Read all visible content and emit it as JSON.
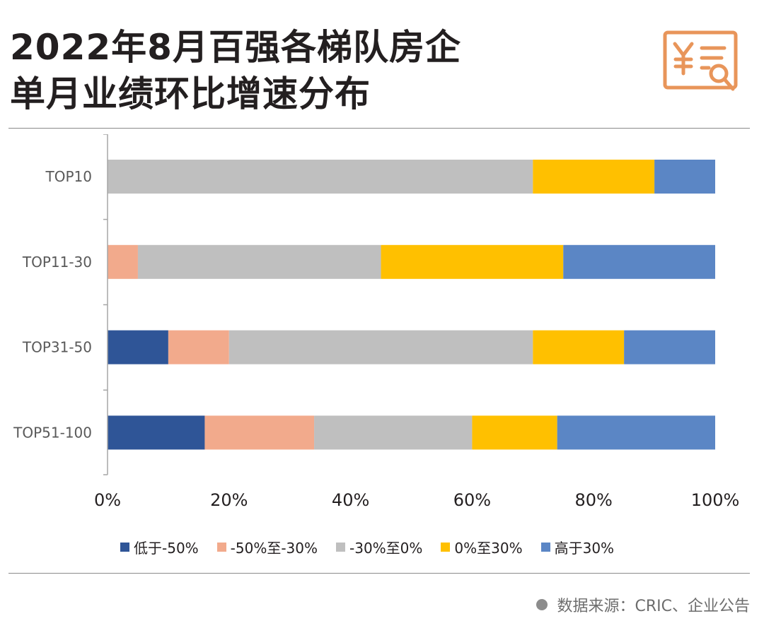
{
  "header": {
    "title_line1": "2022年8月百强各梯队房企",
    "title_line2": "单月业绩环比增速分布",
    "icon": "yuan-receipt-search-icon",
    "icon_color": "#e8955a"
  },
  "chart_data": {
    "type": "bar",
    "orientation": "horizontal",
    "stacked": true,
    "categories": [
      "TOP10",
      "TOP11-30",
      "TOP31-50",
      "TOP51-100"
    ],
    "series": [
      {
        "name": "低于-50%",
        "color": "#2f5597",
        "values": [
          0,
          0,
          10,
          16
        ]
      },
      {
        "name": "-50%至-30%",
        "color": "#f2aa8c",
        "values": [
          0,
          5,
          10,
          18
        ]
      },
      {
        "name": "-30%至0%",
        "color": "#bfbfbf",
        "values": [
          70,
          40,
          50,
          26
        ]
      },
      {
        "name": "0%至30%",
        "color": "#ffc000",
        "values": [
          20,
          30,
          15,
          14
        ]
      },
      {
        "name": "高于30%",
        "color": "#5b86c5",
        "values": [
          10,
          25,
          15,
          26
        ]
      }
    ],
    "xlim": [
      0,
      100
    ],
    "xticks": [
      "0%",
      "20%",
      "40%",
      "60%",
      "80%",
      "100%"
    ],
    "xlabel": "",
    "ylabel": "",
    "grid": false,
    "legend_position": "bottom"
  },
  "footer": {
    "source": "数据来源：CRIC、企业公告"
  }
}
